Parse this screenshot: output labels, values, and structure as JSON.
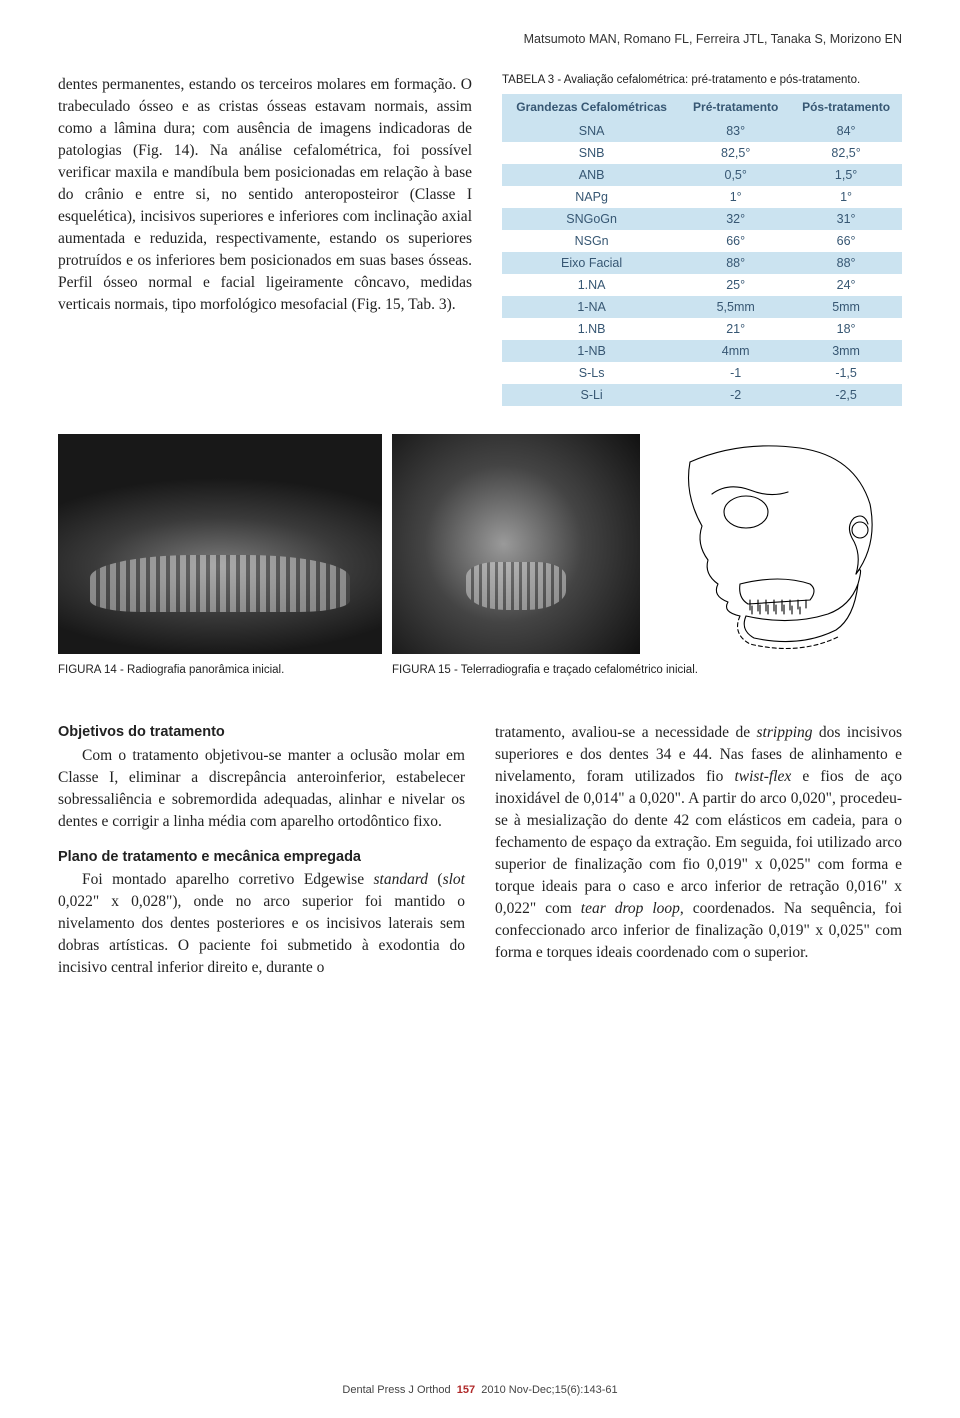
{
  "header": {
    "authors": "Matsumoto MAN, Romano FL, Ferreira JTL, Tanaka S, Morizono EN"
  },
  "leftText": {
    "paragraph": "dentes permanentes, estando os terceiros molares em formação. O trabeculado ósseo e as cristas ósseas estavam normais, assim como a lâmina dura; com ausência de imagens indicadoras de patologias (Fig. 14). Na análise cefalométrica, foi possível verificar maxila e mandíbula bem posicionadas em relação à base do crânio e entre si, no sentido anteroposteiror (Classe I esquelética), incisivos superiores e inferiores com inclinação axial aumentada e reduzida, respectivamente, estando os superiores protruídos e os inferiores bem posicionados em suas bases ósseas. Perfil ósseo normal e facial ligeiramente côncavo, medidas verticais normais, tipo morfológico mesofacial (Fig. 15, Tab. 3)."
  },
  "table": {
    "caption": "TABELA 3 - Avaliação cefalométrica: pré-tratamento e pós-tratamento.",
    "headers": [
      "Grandezas Cefalométricas",
      "Pré-tratamento",
      "Pós-tratamento"
    ],
    "rows": [
      [
        "SNA",
        "83°",
        "84°"
      ],
      [
        "SNB",
        "82,5°",
        "82,5°"
      ],
      [
        "ANB",
        "0,5°",
        "1,5°"
      ],
      [
        "NAPg",
        "1°",
        "1°"
      ],
      [
        "SNGoGn",
        "32°",
        "31°"
      ],
      [
        "NSGn",
        "66°",
        "66°"
      ],
      [
        "Eixo Facial",
        "88°",
        "88°"
      ],
      [
        "1.NA",
        "25°",
        "24°"
      ],
      [
        "1-NA",
        "5,5mm",
        "5mm"
      ],
      [
        "1.NB",
        "21°",
        "18°"
      ],
      [
        "1-NB",
        "4mm",
        "3mm"
      ],
      [
        "S-Ls",
        "-1",
        "-1,5"
      ],
      [
        "S-Li",
        "-2",
        "-2,5"
      ]
    ],
    "header_bg": "#cbe3f0",
    "header_color": "#375773",
    "row_even_bg": "#cbe3f0",
    "row_odd_bg": "#ffffff",
    "text_color": "#375773"
  },
  "figures": {
    "fig14_caption": "FIGURA 14 - Radiografia panorâmica inicial.",
    "fig15_caption": "FIGURA 15 - Telerradiografia e traçado cefalométrico inicial."
  },
  "bottom": {
    "left": {
      "h1": "Objetivos do tratamento",
      "p1": "Com o tratamento objetivou-se manter a oclusão molar em Classe I, eliminar a discrepância anteroinferior, estabelecer sobressaliência e sobremordida adequadas, alinhar e nivelar os dentes e corrigir a linha média com aparelho ortodôntico fixo.",
      "h2": "Plano de tratamento e mecânica empregada",
      "p2a": "Foi montado aparelho corretivo Edgewise ",
      "p2b": "standard",
      "p2c": " (",
      "p2d": "slot",
      "p2e": " 0,022\" x 0,028\"), onde no arco superior foi mantido o nivelamento dos dentes posteriores e os incisivos laterais sem dobras artísticas. O paciente foi submetido à exodontia do incisivo central inferior direito e, durante o"
    },
    "right": {
      "p1a": "tratamento, avaliou-se a necessidade de ",
      "p1b": "stripping",
      "p1c": " dos incisivos superiores e dos dentes 34 e 44. Nas fases de alinhamento e nivelamento, foram utilizados fio ",
      "p1d": "twist-flex",
      "p1e": " e fios de aço inoxidável de 0,014\" a 0,020\". A partir do arco 0,020\", procedeu-se à mesialização do dente 42 com elásticos em cadeia, para o fechamento de espaço da extração. Em seguida, foi utilizado arco superior de finalização com fio 0,019\" x 0,025\" com forma e torque ideais para o caso e arco inferior de retração 0,016\" x 0,022\" com ",
      "p1f": "tear drop loop",
      "p1g": ", coordenados. Na sequência, foi confeccionado arco inferior de finalização 0,019\" x 0,025\" com forma e torques ideais coordenado com o superior."
    }
  },
  "footer": {
    "journal": "Dental Press J Orthod",
    "page": "157",
    "issue": "2010 Nov-Dec;15(6):143-61"
  },
  "tracing_svg": {
    "stroke": "#000000",
    "stroke_width": 1.1,
    "fill": "none"
  }
}
